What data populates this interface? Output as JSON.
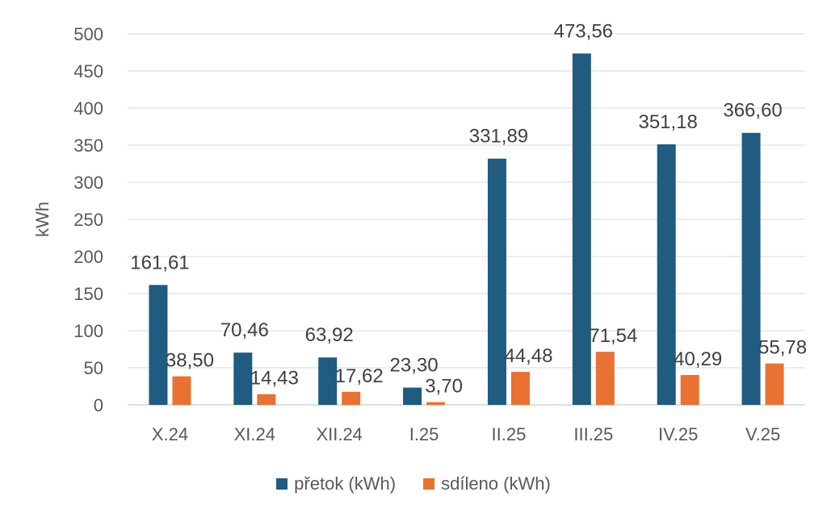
{
  "chart_data": {
    "type": "bar",
    "title": "",
    "xlabel": "",
    "ylabel": "kWh",
    "ylim": [
      0,
      500
    ],
    "ytick_step": 50,
    "grid": true,
    "legend_position": "bottom",
    "categories": [
      "X.24",
      "XI.24",
      "XII.24",
      "I.25",
      "II.25",
      "III.25",
      "IV.25",
      "V.25"
    ],
    "series": [
      {
        "name": "přetok (kWh)",
        "color": "#1F5C7F",
        "values": [
          161.61,
          70.46,
          63.92,
          23.3,
          331.89,
          473.56,
          351.18,
          366.6
        ],
        "labels": [
          "161,61",
          "70,46",
          "63,92",
          "23,30",
          "331,89",
          "473,56",
          "351,18",
          "366,60"
        ]
      },
      {
        "name": "sdíleno (kWh)",
        "color": "#E97132",
        "values": [
          38.5,
          14.43,
          17.62,
          3.7,
          44.48,
          71.54,
          40.29,
          55.78
        ],
        "labels": [
          "38,50",
          "14,43",
          "17,62",
          "3,70",
          "44,48",
          "71,54",
          "40,29",
          "55,78"
        ]
      }
    ]
  }
}
